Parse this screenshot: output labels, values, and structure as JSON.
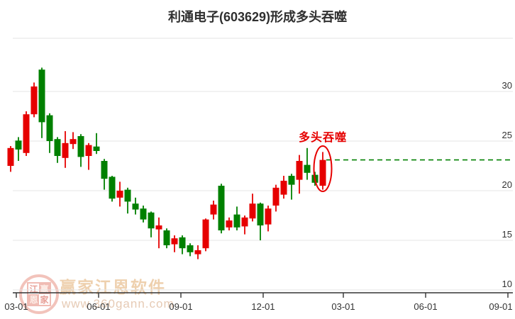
{
  "title": "利通电子(603629)形成多头吞噬",
  "annotation": {
    "label": "多头吞噬"
  },
  "watermark": {
    "brand": "赢家江恩软件",
    "url": "www.360gann.com",
    "seal_chars": [
      "江",
      "赢",
      "恩",
      "家"
    ]
  },
  "colors": {
    "up": "#e60000",
    "down": "#008000",
    "grid": "#e6e6e6",
    "axis": "#333333",
    "annotation": "#e60000",
    "reference_line": "#008000"
  },
  "chart_data": {
    "type": "candlestick",
    "title": "利通电子(603629)形成多头吞噬",
    "period": "weekly",
    "x_ticks": [
      "03-01",
      "06-01",
      "09-01",
      "12-01",
      "03-01",
      "06-01",
      "09-01"
    ],
    "y_axis": {
      "ticks": [
        30,
        25,
        20,
        15,
        10
      ],
      "ylim": [
        10,
        35.4
      ]
    },
    "grid": true,
    "reference_line": {
      "price": 23.1,
      "style": "dashed",
      "color": "green"
    },
    "pattern_highlight": {
      "label": "多头吞噬",
      "shape": "ellipse",
      "candle_index": 41
    },
    "candles": [
      {
        "o": 22.5,
        "c": 24.3,
        "l": 21.9,
        "h": 24.5
      },
      {
        "o": 25.05,
        "c": 24.15,
        "l": 23.0,
        "h": 25.4
      },
      {
        "o": 23.8,
        "c": 27.7,
        "l": 23.5,
        "h": 28.0
      },
      {
        "o": 27.7,
        "c": 30.5,
        "l": 27.4,
        "h": 30.9
      },
      {
        "o": 32.2,
        "c": 26.9,
        "l": 25.3,
        "h": 32.4
      },
      {
        "o": 27.6,
        "c": 25.0,
        "l": 23.8,
        "h": 27.8
      },
      {
        "o": 25.2,
        "c": 23.5,
        "l": 22.8,
        "h": 25.4
      },
      {
        "o": 23.3,
        "c": 24.8,
        "l": 22.3,
        "h": 26.0
      },
      {
        "o": 24.7,
        "c": 25.2,
        "l": 24.2,
        "h": 25.9
      },
      {
        "o": 25.5,
        "c": 23.4,
        "l": 22.4,
        "h": 25.7
      },
      {
        "o": 23.5,
        "c": 24.6,
        "l": 22.1,
        "h": 24.8
      },
      {
        "o": 24.45,
        "c": 24.0,
        "l": 23.7,
        "h": 25.8
      },
      {
        "o": 23.0,
        "c": 21.2,
        "l": 20.1,
        "h": 23.2
      },
      {
        "o": 21.4,
        "c": 19.2,
        "l": 18.9,
        "h": 21.5
      },
      {
        "o": 19.3,
        "c": 20.0,
        "l": 18.4,
        "h": 20.9
      },
      {
        "o": 20.1,
        "c": 18.9,
        "l": 17.7,
        "h": 20.3
      },
      {
        "o": 18.7,
        "c": 18.1,
        "l": 17.6,
        "h": 19.3
      },
      {
        "o": 18.2,
        "c": 17.1,
        "l": 16.8,
        "h": 18.5
      },
      {
        "o": 17.8,
        "c": 16.2,
        "l": 15.3,
        "h": 17.9
      },
      {
        "o": 16.1,
        "c": 16.5,
        "l": 14.2,
        "h": 17.3
      },
      {
        "o": 16.0,
        "c": 14.5,
        "l": 14.2,
        "h": 16.2
      },
      {
        "o": 14.6,
        "c": 15.2,
        "l": 13.8,
        "h": 15.5
      },
      {
        "o": 15.3,
        "c": 14.2,
        "l": 13.6,
        "h": 15.5
      },
      {
        "o": 14.5,
        "c": 13.8,
        "l": 13.4,
        "h": 14.7
      },
      {
        "o": 13.6,
        "c": 14.0,
        "l": 13.1,
        "h": 14.5
      },
      {
        "o": 14.2,
        "c": 17.1,
        "l": 13.9,
        "h": 17.2
      },
      {
        "o": 17.6,
        "c": 18.6,
        "l": 17.1,
        "h": 19.0
      },
      {
        "o": 20.5,
        "c": 16.0,
        "l": 15.7,
        "h": 20.7
      },
      {
        "o": 16.3,
        "c": 17.0,
        "l": 16.0,
        "h": 17.3
      },
      {
        "o": 17.6,
        "c": 16.3,
        "l": 16.0,
        "h": 18.4
      },
      {
        "o": 16.4,
        "c": 17.3,
        "l": 15.6,
        "h": 17.5
      },
      {
        "o": 17.2,
        "c": 18.7,
        "l": 16.9,
        "h": 19.7
      },
      {
        "o": 18.7,
        "c": 16.5,
        "l": 15.0,
        "h": 18.8
      },
      {
        "o": 16.6,
        "c": 18.2,
        "l": 15.9,
        "h": 18.5
      },
      {
        "o": 18.5,
        "c": 20.3,
        "l": 17.9,
        "h": 20.6
      },
      {
        "o": 19.6,
        "c": 21.0,
        "l": 19.2,
        "h": 21.5
      },
      {
        "o": 21.5,
        "c": 20.6,
        "l": 19.1,
        "h": 21.7
      },
      {
        "o": 21.1,
        "c": 23.0,
        "l": 19.7,
        "h": 23.6
      },
      {
        "o": 22.6,
        "c": 21.8,
        "l": 21.1,
        "h": 24.3
      },
      {
        "o": 21.6,
        "c": 20.8,
        "l": 20.5,
        "h": 21.9
      },
      {
        "o": 20.5,
        "c": 23.1,
        "l": 20.1,
        "h": 23.9
      }
    ]
  }
}
